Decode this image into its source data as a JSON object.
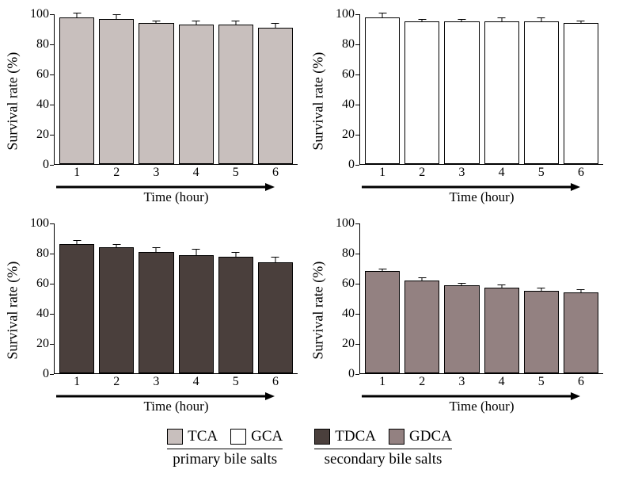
{
  "ylabel": "Survival rate (%)",
  "xlabel": "Time (hour)",
  "ymax": 100,
  "yticks": [
    0,
    20,
    40,
    60,
    80,
    100
  ],
  "xticks": [
    "1",
    "2",
    "3",
    "4",
    "5",
    "6"
  ],
  "axis_color": "#000000",
  "background_color": "#ffffff",
  "label_fontsize": 18,
  "tick_fontsize": 16,
  "legend_fontsize": 19,
  "panels": [
    {
      "key": "TCA",
      "fill": "#c8bfbd",
      "values": [
        98,
        97,
        94,
        93,
        93,
        91
      ],
      "err": [
        3,
        3,
        2,
        3,
        3,
        3
      ]
    },
    {
      "key": "GCA",
      "fill": "#ffffff",
      "values": [
        98,
        95,
        95,
        95,
        95,
        94
      ],
      "err": [
        3,
        2,
        2,
        3,
        3,
        2
      ]
    },
    {
      "key": "TDCA",
      "fill": "#4a3f3c",
      "values": [
        86,
        84,
        81,
        79,
        78,
        74
      ],
      "err": [
        3,
        2,
        3,
        4,
        3,
        4
      ]
    },
    {
      "key": "GDCA",
      "fill": "#938181",
      "values": [
        68,
        62,
        59,
        57,
        55,
        54
      ],
      "err": [
        2,
        2,
        1.5,
        2,
        2,
        2
      ]
    }
  ],
  "legend": {
    "groups": [
      {
        "label": "primary bile salts",
        "items": [
          {
            "name": "TCA",
            "fill": "#c8bfbd"
          },
          {
            "name": "GCA",
            "fill": "#ffffff"
          }
        ]
      },
      {
        "label": "secondary bile salts",
        "items": [
          {
            "name": "TDCA",
            "fill": "#4a3f3c"
          },
          {
            "name": "GDCA",
            "fill": "#938181"
          }
        ]
      }
    ]
  }
}
